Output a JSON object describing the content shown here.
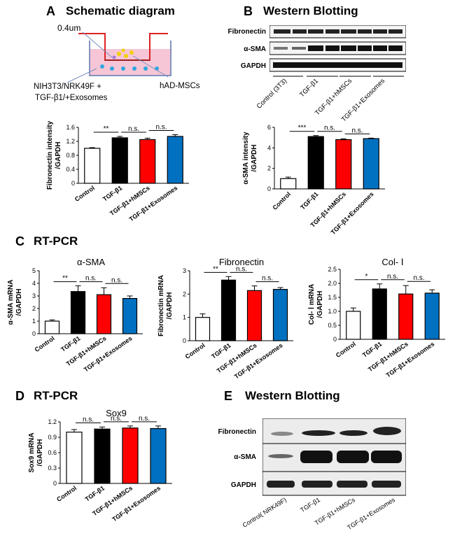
{
  "panels": {
    "a": {
      "letter": "A",
      "title": "Schematic diagram",
      "pore": "0.4um",
      "lower_label_1": "NIH3T3/NRK49F +",
      "lower_label_2": "TGF-β1/+Exosomes",
      "insert_label": "hAD-MSCs"
    },
    "b": {
      "letter": "B",
      "title": "Western Blotting",
      "rows": [
        "Fibronectin",
        "α-SMA",
        "GAPDH"
      ],
      "lanes": [
        "Control (3T3)",
        "TGF-β1",
        "TGF-β1+hMSCs",
        "TGF-β1+Exosomes"
      ]
    },
    "c": {
      "letter": "C",
      "title": "RT-PCR"
    },
    "d": {
      "letter": "D",
      "title": "RT-PCR"
    },
    "e": {
      "letter": "E",
      "title": "Western Blotting",
      "rows": [
        "Fibronectin",
        "α-SMA",
        "GAPDH"
      ],
      "lanes": [
        "Control( NRK49F)",
        "TGF-β1",
        "TGF-β1+hMSCs",
        "TGF-β1+Exosomes"
      ]
    }
  },
  "colors": {
    "control": "#ffffff",
    "tgf": "#000000",
    "hmscs": "#ff0000",
    "exosomes": "#0070c0"
  },
  "chart_data": [
    {
      "id": "fn_wb",
      "type": "bar",
      "title": "",
      "ylabel": "Fibronectin intensity /GAPDH",
      "ylabel_lines": [
        "Fibronectin intensity",
        "/GAPDH"
      ],
      "ylim": [
        0,
        1.6
      ],
      "yticks": [
        "0",
        "0.4",
        "0.8",
        "1.2",
        "1.6"
      ],
      "categories": [
        "Control",
        "TGF-β1",
        "TGF-β1+hMSCs",
        "TGF-β1+Exosomes"
      ],
      "values": [
        1.0,
        1.3,
        1.25,
        1.34
      ],
      "errors": [
        0.02,
        0.04,
        0.04,
        0.05
      ],
      "sig": [
        "**",
        "n.s.",
        "n.s."
      ]
    },
    {
      "id": "sma_wb",
      "type": "bar",
      "title": "",
      "ylabel": "α-SMA intensity /GAPDH",
      "ylabel_lines": [
        "α-SMA intensity",
        "/GAPDH"
      ],
      "ylim": [
        0,
        6
      ],
      "yticks": [
        "0",
        "2",
        "4",
        "6"
      ],
      "categories": [
        "Control",
        "TGF-β1",
        "TGF-β1+hMSCs",
        "TGF-β1+Exosomes"
      ],
      "values": [
        1.0,
        5.1,
        4.8,
        4.9
      ],
      "errors": [
        0.15,
        0.1,
        0.08,
        0.05
      ],
      "sig": [
        "***",
        "n.s.",
        "n.s."
      ]
    },
    {
      "id": "sma_pcr",
      "type": "bar",
      "title": "α-SMA",
      "ylabel": "α-SMA mRNA /GAPDH",
      "ylabel_lines": [
        "α-SMA mRNA",
        "/GAPDH"
      ],
      "ylim": [
        0,
        5
      ],
      "yticks": [
        "0",
        "1",
        "2",
        "3",
        "4",
        "5"
      ],
      "categories": [
        "Control",
        "TGF-β1",
        "TGF-β1+hMSCs",
        "TGF-β1+Exosomes"
      ],
      "values": [
        1.0,
        3.35,
        3.1,
        2.8
      ],
      "errors": [
        0.1,
        0.45,
        0.55,
        0.2
      ],
      "sig": [
        "**",
        "n.s.",
        "n.s."
      ]
    },
    {
      "id": "fn_pcr",
      "type": "bar",
      "title": "Fibronectin",
      "ylabel": "Fibronectin mRNA /GAPDH",
      "ylabel_lines": [
        "Fibronectin mRNA",
        "/GAPDH"
      ],
      "ylim": [
        0,
        3
      ],
      "yticks": [
        "0",
        "1",
        "2",
        "3"
      ],
      "categories": [
        "Control",
        "TGF-β1",
        "TGF-β1+hMSCs",
        "TGF-β1+Exosomes"
      ],
      "values": [
        1.0,
        2.6,
        2.15,
        2.2
      ],
      "errors": [
        0.15,
        0.15,
        0.2,
        0.08
      ],
      "sig": [
        "**",
        "n.s.",
        "n.s."
      ]
    },
    {
      "id": "col_pcr",
      "type": "bar",
      "title": "Col- Ⅰ",
      "ylabel": "Col- Ⅰ mRNA /GAPDH",
      "ylabel_lines": [
        "Col- Ⅰ mRNA",
        "/GAPDH"
      ],
      "ylim": [
        0,
        2.5
      ],
      "yticks": [
        "0",
        "0.5",
        "1.0",
        "1.5",
        "2.0",
        "2.5"
      ],
      "categories": [
        "Control",
        "TGF-β1",
        "TGF-β1+hMSCs",
        "TGF-β1+Exosomes"
      ],
      "values": [
        1.0,
        1.8,
        1.62,
        1.65
      ],
      "errors": [
        0.12,
        0.18,
        0.3,
        0.12
      ],
      "sig": [
        "*",
        "n.s.",
        "n.s."
      ]
    },
    {
      "id": "sox_pcr",
      "type": "bar",
      "title": "Sox9",
      "ylabel": "Sox9 mRNA /GAPDH",
      "ylabel_lines": [
        "Sox9 mRNA",
        "/GAPDH"
      ],
      "ylim": [
        0,
        1.2
      ],
      "yticks": [
        "0",
        "0.3",
        "0.6",
        "0.9",
        "1.2"
      ],
      "categories": [
        "Control",
        "TGF-β1",
        "TGF-β1+hMSCs",
        "TGF-β1+Exosomes"
      ],
      "values": [
        1.0,
        1.06,
        1.08,
        1.07
      ],
      "errors": [
        0.05,
        0.04,
        0.04,
        0.05
      ],
      "sig": [
        "n.s.",
        "n.s.",
        "n.s."
      ]
    }
  ]
}
